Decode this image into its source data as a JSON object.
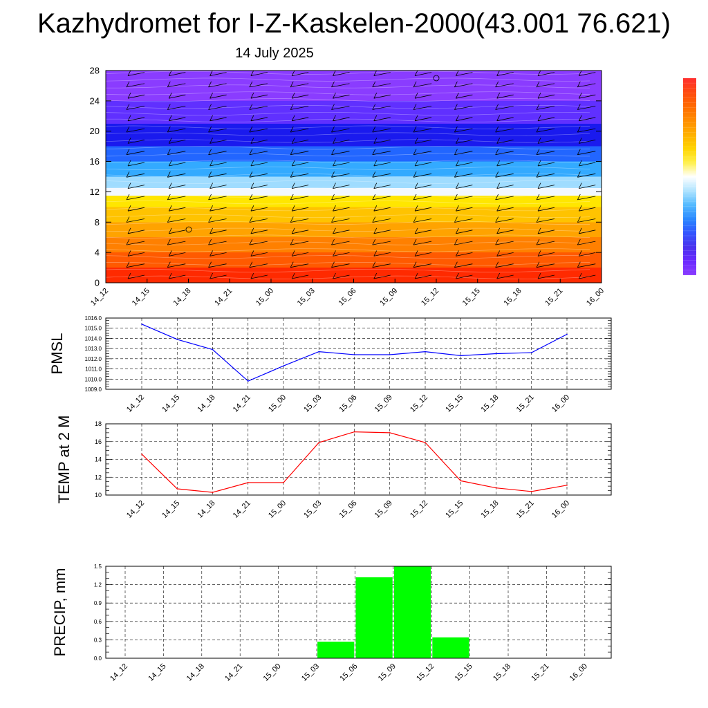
{
  "title": "Kazhydromet for I-Z-Kaskelen-2000(43.001 76.621)",
  "subtitle": "14 July 2025",
  "colors": {
    "pmsl": "#0000ff",
    "temp": "#ff0000",
    "precip": "#00ff00",
    "grid": "#000000"
  },
  "chart_data": [
    {
      "type": "heatmap",
      "name": "height-time-section",
      "x": [
        "14_12",
        "14_15",
        "14_18",
        "14_21",
        "15_00",
        "15_03",
        "15_06",
        "15_09",
        "15_12",
        "15_15",
        "15_18",
        "15_21",
        "16_00"
      ],
      "ylim": [
        0,
        28
      ],
      "yticks": [
        0,
        4,
        8,
        12,
        16,
        20,
        24,
        28
      ],
      "color_bands": [
        {
          "from": 0,
          "to": 2,
          "color": "#ff2a00"
        },
        {
          "from": 2,
          "to": 4,
          "color": "#ff5a00"
        },
        {
          "from": 4,
          "to": 6,
          "color": "#ff8000"
        },
        {
          "from": 6,
          "to": 8,
          "color": "#ffa300"
        },
        {
          "from": 8,
          "to": 10,
          "color": "#ffc300"
        },
        {
          "from": 10,
          "to": 11.5,
          "color": "#ffe600"
        },
        {
          "from": 11.5,
          "to": 12.5,
          "color": "#f2f8ff"
        },
        {
          "from": 12.5,
          "to": 14,
          "color": "#9fdcff"
        },
        {
          "from": 14,
          "to": 16,
          "color": "#33aaff"
        },
        {
          "from": 16,
          "to": 18,
          "color": "#2266ff"
        },
        {
          "from": 18,
          "to": 21,
          "color": "#1a1aee"
        },
        {
          "from": 21,
          "to": 24,
          "color": "#6030ff"
        },
        {
          "from": 24,
          "to": 28,
          "color": "#8a3cff"
        }
      ],
      "colorbar": [
        "#ff3030",
        "#ff4a10",
        "#ff6a00",
        "#ff8c00",
        "#ffb000",
        "#ffd400",
        "#fff04a",
        "#ffffff",
        "#b0e4ff",
        "#55bbff",
        "#2a88ff",
        "#3355ff",
        "#4a33ee",
        "#6a2aff",
        "#8a3cff"
      ]
    },
    {
      "type": "line",
      "name": "pmsl",
      "x": [
        "14_12",
        "14_15",
        "14_18",
        "14_21",
        "15_00",
        "15_03",
        "15_06",
        "15_09",
        "15_12",
        "15_15",
        "15_18",
        "15_21",
        "16_00"
      ],
      "ylabel": "PMSL",
      "ylim": [
        1009.0,
        1016.0
      ],
      "yticks": [
        "1009.0",
        "1010.0",
        "1011.0",
        "1012.0",
        "1013.0",
        "1014.0",
        "1015.0",
        "1016.0"
      ],
      "series": [
        {
          "values": [
            1015.4,
            1013.9,
            1012.9,
            1009.8,
            1011.3,
            1012.7,
            1012.4,
            1012.4,
            1012.7,
            1012.3,
            1012.5,
            1012.6,
            1014.4
          ]
        }
      ]
    },
    {
      "type": "line",
      "name": "temp",
      "x": [
        "14_12",
        "14_15",
        "14_18",
        "14_21",
        "15_00",
        "15_03",
        "15_06",
        "15_09",
        "15_12",
        "15_15",
        "15_18",
        "15_21",
        "16_00"
      ],
      "ylabel": "TEMP at 2 M",
      "ylim": [
        10,
        18
      ],
      "yticks": [
        "10",
        "12",
        "14",
        "16",
        "18"
      ],
      "series": [
        {
          "values": [
            14.6,
            10.7,
            10.3,
            11.4,
            11.4,
            15.9,
            17.1,
            17.0,
            15.9,
            11.6,
            10.8,
            10.4,
            11.1
          ]
        }
      ]
    },
    {
      "type": "bar",
      "name": "precip",
      "x": [
        "14_12",
        "14_15",
        "14_18",
        "14_21",
        "15_00",
        "15_03",
        "15_06",
        "15_09",
        "15_12",
        "15_15",
        "15_18",
        "15_21",
        "16_00"
      ],
      "ylabel": "PRECIP, mm",
      "ylim": [
        0,
        1.5
      ],
      "yticks": [
        "0.0",
        "0.3",
        "0.6",
        "0.9",
        "1.2",
        "1.5"
      ],
      "values": [
        0,
        0,
        0,
        0,
        0,
        0.27,
        1.32,
        1.5,
        0.34,
        0,
        0,
        0,
        0
      ]
    }
  ]
}
